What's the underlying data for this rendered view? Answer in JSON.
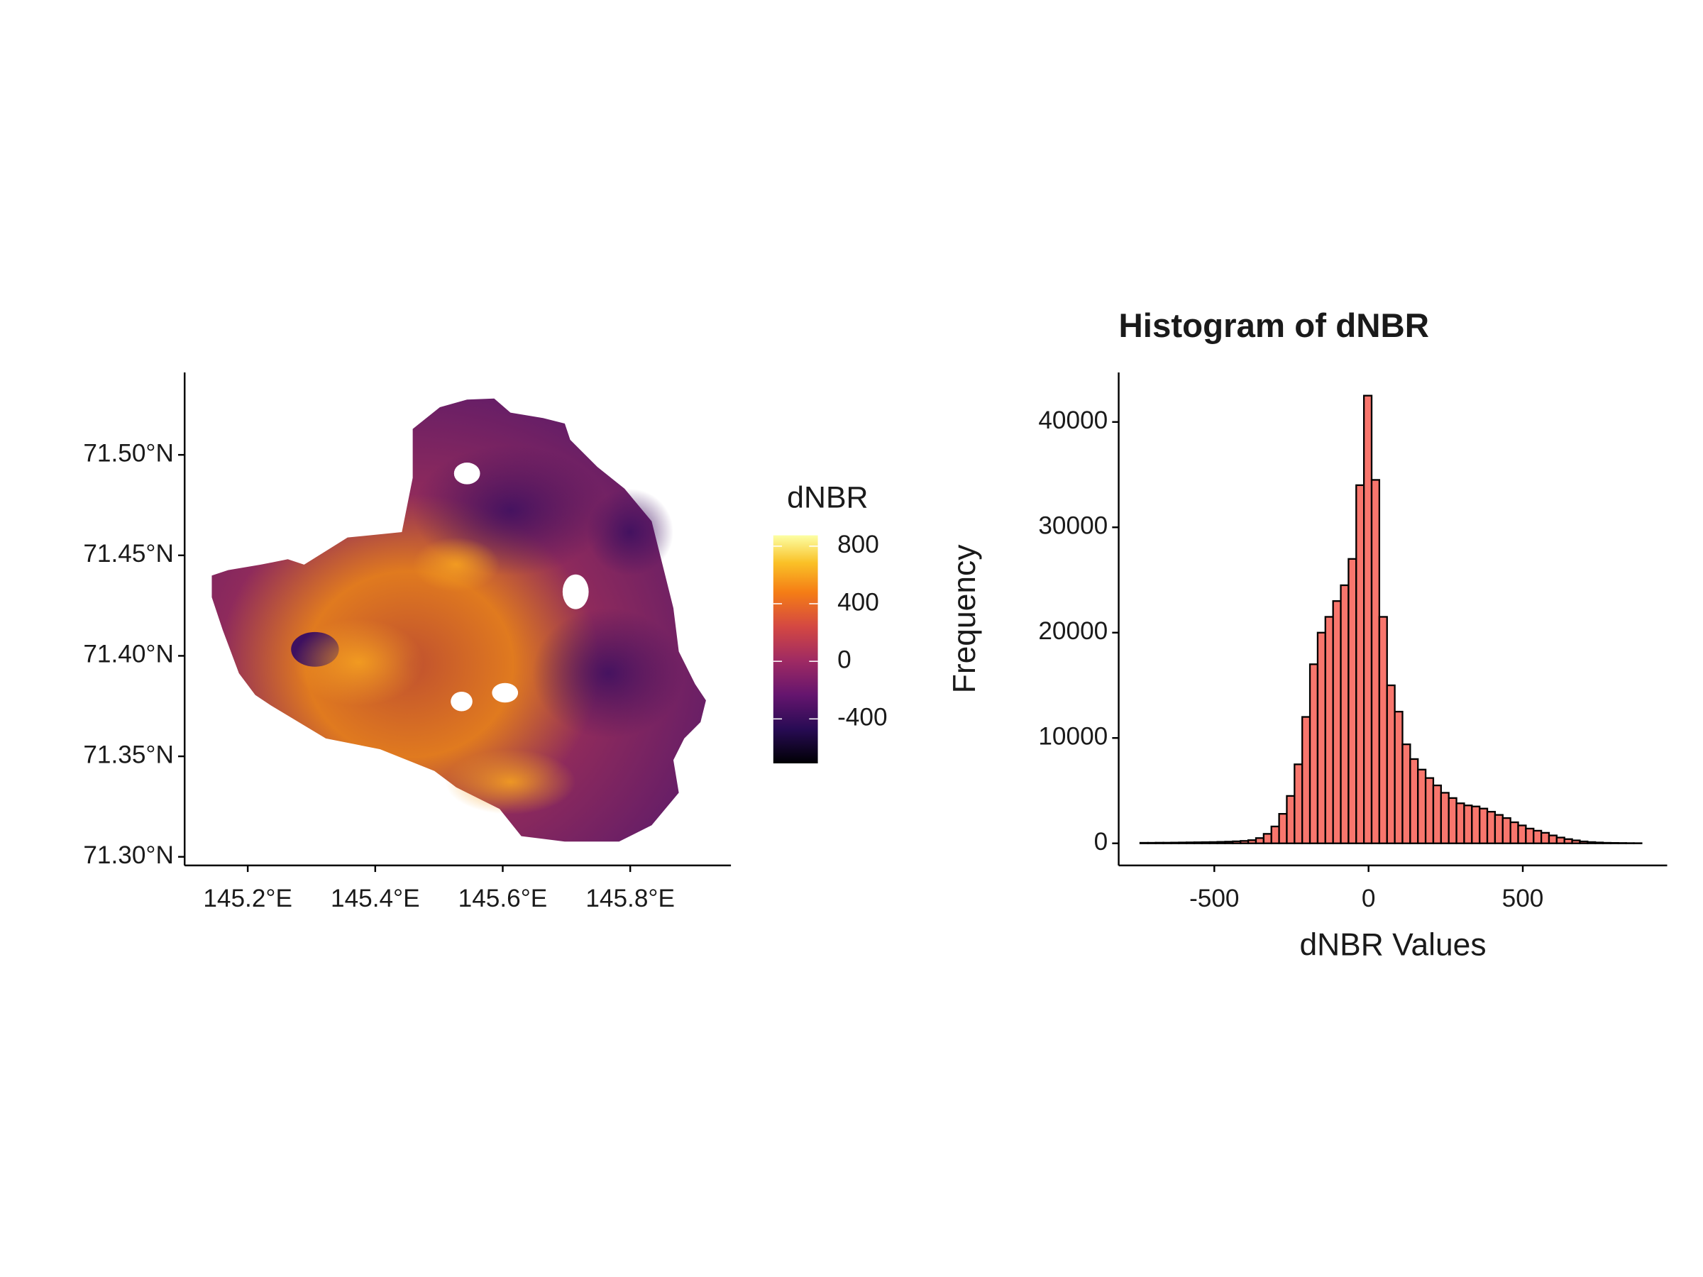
{
  "chart_data": [
    {
      "type": "map",
      "xlim": [
        145.101,
        145.958
      ],
      "xticks": [
        {
          "value": 145.2,
          "label": "145.2°E"
        },
        {
          "value": 145.4,
          "label": "145.4°E"
        },
        {
          "value": 145.6,
          "label": "145.6°E"
        },
        {
          "value": 145.8,
          "label": "145.8°E"
        }
      ],
      "ylim": [
        71.2957,
        71.541
      ],
      "yticks": [
        {
          "value": 71.3,
          "label": "71.30°N"
        },
        {
          "value": 71.35,
          "label": "71.35°N"
        },
        {
          "value": 71.4,
          "label": "71.40°N"
        },
        {
          "value": 71.45,
          "label": "71.45°N"
        },
        {
          "value": 71.5,
          "label": "71.50°N"
        }
      ],
      "legend_title": "dNBR",
      "fill_lim": [
        -709,
        875
      ],
      "fill_ticks": [
        -400,
        0,
        400,
        800
      ]
    },
    {
      "type": "histogram",
      "title": "Histogram of dNBR",
      "xlabel": "dNBR Values",
      "ylabel": "Frequency",
      "bins": [
        -740,
        -715,
        -690,
        -665,
        -640,
        -615,
        -590,
        -565,
        -540,
        -515,
        -490,
        -465,
        -440,
        -415,
        -390,
        -365,
        -340,
        -315,
        -290,
        -265,
        -240,
        -215,
        -190,
        -165,
        -140,
        -115,
        -90,
        -65,
        -40,
        -15,
        10,
        35,
        60,
        85,
        110,
        135,
        160,
        185,
        210,
        235,
        260,
        285,
        310,
        335,
        360,
        385,
        410,
        435,
        460,
        485,
        510,
        535,
        560,
        585,
        610,
        635,
        660,
        685,
        710,
        735,
        760,
        785,
        810,
        835,
        860,
        885
      ],
      "values": [
        50,
        50,
        60,
        60,
        70,
        80,
        90,
        100,
        110,
        120,
        140,
        160,
        190,
        230,
        300,
        500,
        900,
        1600,
        2800,
        4500,
        7500,
        12000,
        17000,
        20000,
        21500,
        23000,
        24500,
        27000,
        34000,
        42500,
        34500,
        21500,
        15000,
        12500,
        9400,
        8000,
        7000,
        6200,
        5500,
        4800,
        4300,
        3800,
        3600,
        3500,
        3300,
        3000,
        2700,
        2400,
        2000,
        1700,
        1400,
        1200,
        1000,
        750,
        550,
        400,
        280,
        180,
        120,
        80,
        50,
        40,
        30,
        20,
        15
      ],
      "color": "#f8766d",
      "edgecolor": "#000000",
      "xlim": [
        -810,
        968
      ],
      "xticks": [
        -500,
        0,
        500
      ],
      "ylim": [
        -2100,
        44700
      ],
      "yticks": [
        0,
        10000,
        20000,
        30000,
        40000
      ]
    }
  ]
}
